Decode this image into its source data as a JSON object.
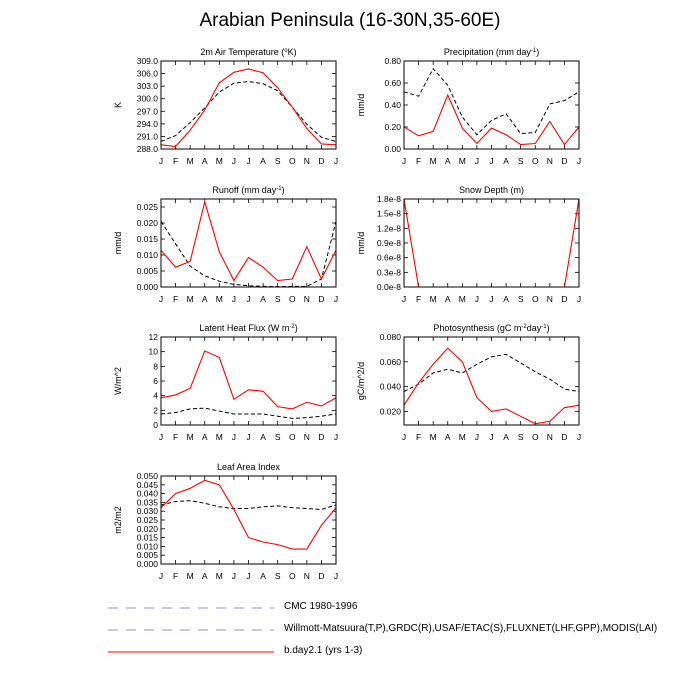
{
  "page_title": "Arabian Peninsula (16-30N,35-60E)",
  "months": [
    "J",
    "F",
    "M",
    "A",
    "M",
    "J",
    "J",
    "A",
    "S",
    "O",
    "N",
    "D",
    "J"
  ],
  "colors": {
    "model": "#ff0000",
    "obs": "#000000",
    "legend_obs": "#9090c8"
  },
  "legend": [
    {
      "label": "CMC 1980-1996",
      "style": "dashed",
      "color": "#9090c8"
    },
    {
      "label": "Willmott-Matsuura(T,P),GRDC(R),USAF/ETAC(S),FLUXNET(LHF,GPP),MODIS(LAI)",
      "style": "dashed",
      "color": "#9090c8"
    },
    {
      "label": "b.day2.1 (yrs 1-3)",
      "style": "solid",
      "color": "#ff0000"
    }
  ],
  "chart_data": [
    {
      "type": "line",
      "title_pre": "2m Air Temperature (",
      "title_sup": "o",
      "title_post": "K)",
      "ylabel": "K",
      "ylim": [
        288.0,
        309.0
      ],
      "yticks": [
        288.0,
        291.0,
        294.0,
        297.0,
        300.0,
        303.0,
        306.0,
        309.0
      ],
      "ytick_labels": [
        "288.0",
        "291.0",
        "294.0",
        "297.0",
        "300.0",
        "303.0",
        "306.0",
        "309.0"
      ],
      "series": [
        {
          "name": "obs",
          "style": "dashed",
          "values": [
            289.8,
            291.2,
            294.3,
            297.8,
            301.6,
            303.7,
            304.1,
            303.6,
            301.9,
            298.0,
            293.9,
            290.8,
            289.8
          ]
        },
        {
          "name": "model",
          "style": "solid",
          "values": [
            289.0,
            288.6,
            292.5,
            297.3,
            303.8,
            306.3,
            307.1,
            306.2,
            302.6,
            298.0,
            292.9,
            289.2,
            289.0
          ]
        }
      ]
    },
    {
      "type": "line",
      "title_pre": "Precipitation (mm day",
      "title_sup": "-1",
      "title_post": ")",
      "ylabel": "mm/d",
      "ylim": [
        0.0,
        0.8
      ],
      "yticks": [
        0.0,
        0.2,
        0.4,
        0.6,
        0.8
      ],
      "ytick_labels": [
        "0.00",
        "0.20",
        "0.40",
        "0.60",
        "0.80"
      ],
      "series": [
        {
          "name": "obs",
          "style": "dashed",
          "values": [
            0.52,
            0.48,
            0.73,
            0.58,
            0.29,
            0.13,
            0.26,
            0.32,
            0.14,
            0.15,
            0.41,
            0.44,
            0.52
          ]
        },
        {
          "name": "model",
          "style": "solid",
          "values": [
            0.2,
            0.12,
            0.16,
            0.49,
            0.19,
            0.05,
            0.19,
            0.13,
            0.04,
            0.05,
            0.25,
            0.04,
            0.2
          ]
        }
      ]
    },
    {
      "type": "line",
      "title_pre": "Runoff (mm day",
      "title_sup": "-1",
      "title_post": ")",
      "ylabel": "mm/d",
      "ylim": [
        0.0,
        0.0275
      ],
      "yticks": [
        0.0,
        0.005,
        0.01,
        0.015,
        0.02,
        0.025
      ],
      "ytick_labels": [
        "0.000",
        "0.005",
        "0.010",
        "0.015",
        "0.020",
        "0.025"
      ],
      "series": [
        {
          "name": "obs",
          "style": "dashed",
          "values": [
            0.0205,
            0.0135,
            0.0065,
            0.0035,
            0.0018,
            0.0008,
            0.0004,
            0.0002,
            0.0001,
            0.0002,
            0.0002,
            0.0025,
            0.0205
          ]
        },
        {
          "name": "model",
          "style": "solid",
          "values": [
            0.0115,
            0.0062,
            0.008,
            0.0266,
            0.011,
            0.002,
            0.0092,
            0.0062,
            0.002,
            0.0025,
            0.0126,
            0.0025,
            0.0115
          ]
        }
      ]
    },
    {
      "type": "line",
      "title_pre": "Snow Depth (m)",
      "title_sup": "",
      "title_post": "",
      "ylabel": "mm/d",
      "ylim": [
        0.0,
        1.8e-08
      ],
      "yticks": [
        0.0,
        3e-09,
        6e-09,
        9e-09,
        1.2e-08,
        1.5e-08,
        1.8e-08
      ],
      "ytick_labels": [
        "0.0e-8",
        "0.3e-8",
        "0.6e-8",
        "0.9e-8",
        "1.2e-8",
        "1.5e-8",
        "1.8e-8"
      ],
      "series": [
        {
          "name": "model",
          "style": "solid",
          "values": [
            1.8e-08,
            0,
            0,
            0,
            0,
            0,
            0,
            0,
            0,
            0,
            0,
            0,
            1.8e-08
          ]
        }
      ]
    },
    {
      "type": "line",
      "title_pre": "Latent Heat Flux (W m",
      "title_sup": "-2",
      "title_post": ")",
      "ylabel": "W/m^2",
      "ylim": [
        0,
        12
      ],
      "yticks": [
        0,
        2,
        4,
        6,
        8,
        10,
        12
      ],
      "ytick_labels": [
        "0",
        "2",
        "4",
        "6",
        "8",
        "10",
        "12"
      ],
      "series": [
        {
          "name": "obs",
          "style": "dashed",
          "values": [
            1.5,
            1.7,
            2.2,
            2.3,
            1.9,
            1.5,
            1.5,
            1.5,
            1.2,
            0.9,
            1.0,
            1.2,
            1.5
          ]
        },
        {
          "name": "model",
          "style": "solid",
          "values": [
            3.7,
            4.1,
            5.0,
            10.1,
            9.2,
            3.5,
            4.8,
            4.6,
            2.5,
            2.2,
            3.1,
            2.6,
            3.7
          ]
        }
      ]
    },
    {
      "type": "line",
      "title_pre": "Photosynthesis (gC m",
      "title_sup": "-2",
      "title_post": "day",
      "title_sup2": "-1",
      "title_post2": ")",
      "ylabel": "gC/m^2/d",
      "ylim": [
        0.009,
        0.08
      ],
      "yticks": [
        0.02,
        0.04,
        0.06,
        0.08
      ],
      "ytick_labels": [
        "0.020",
        "0.040",
        "0.060",
        "0.080"
      ],
      "series": [
        {
          "name": "obs",
          "style": "dashed",
          "values": [
            0.036,
            0.042,
            0.051,
            0.054,
            0.051,
            0.058,
            0.064,
            0.066,
            0.059,
            0.052,
            0.046,
            0.038,
            0.036
          ]
        },
        {
          "name": "model",
          "style": "solid",
          "values": [
            0.025,
            0.043,
            0.058,
            0.071,
            0.06,
            0.031,
            0.02,
            0.022,
            0.016,
            0.01,
            0.012,
            0.023,
            0.025
          ]
        }
      ]
    },
    {
      "type": "line",
      "title_pre": "Leaf Area Index",
      "title_sup": "",
      "title_post": "",
      "ylabel": "m2/m2",
      "ylim": [
        0.0,
        0.05
      ],
      "yticks": [
        0.0,
        0.005,
        0.01,
        0.015,
        0.02,
        0.025,
        0.03,
        0.035,
        0.04,
        0.045,
        0.05
      ],
      "ytick_labels": [
        "0.000",
        "0.005",
        "0.010",
        "0.015",
        "0.020",
        "0.025",
        "0.030",
        "0.035",
        "0.040",
        "0.045",
        "0.050"
      ],
      "series": [
        {
          "name": "obs",
          "style": "dashed",
          "values": [
            0.0335,
            0.0355,
            0.036,
            0.0345,
            0.0325,
            0.0315,
            0.0315,
            0.0325,
            0.033,
            0.032,
            0.0315,
            0.031,
            0.0335
          ]
        },
        {
          "name": "model",
          "style": "solid",
          "values": [
            0.032,
            0.04,
            0.043,
            0.0475,
            0.045,
            0.031,
            0.015,
            0.0125,
            0.011,
            0.0085,
            0.0085,
            0.022,
            0.032
          ]
        }
      ]
    }
  ]
}
